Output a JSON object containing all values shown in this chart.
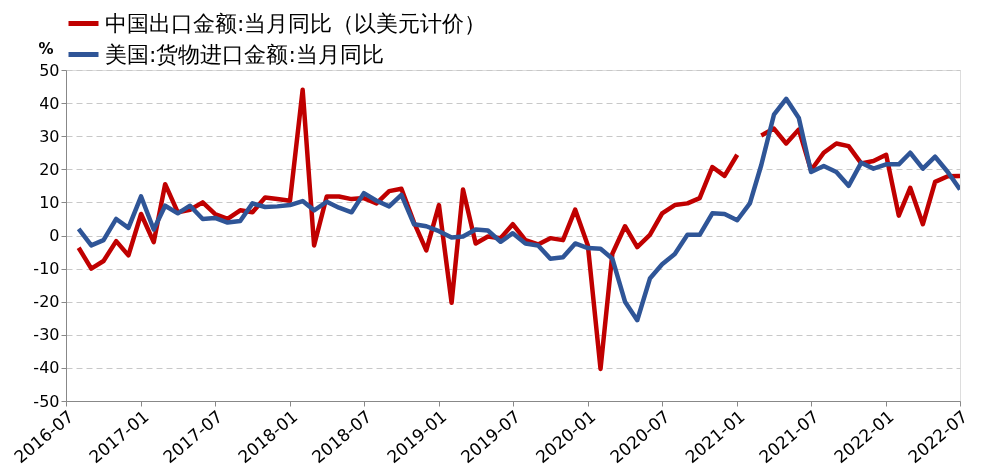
{
  "chart_data": {
    "type": "line",
    "ylabel": "%",
    "xlim": [
      "2016-07",
      "2022-07"
    ],
    "xticks": [
      "2016-07",
      "2017-01",
      "2017-07",
      "2018-01",
      "2018-07",
      "2019-01",
      "2019-07",
      "2020-01",
      "2020-07",
      "2021-01",
      "2021-07",
      "2022-01",
      "2022-07"
    ],
    "ylim": [
      -50,
      50
    ],
    "yticks": [
      -50,
      -40,
      -30,
      -20,
      -10,
      0,
      10,
      20,
      30,
      40,
      50
    ],
    "grid": "y",
    "legend": "top",
    "line_style": "solid",
    "marker": "none",
    "x": [
      "2016-08",
      "2016-09",
      "2016-10",
      "2016-11",
      "2016-12",
      "2017-01",
      "2017-02",
      "2017-03",
      "2017-04",
      "2017-05",
      "2017-06",
      "2017-07",
      "2017-08",
      "2017-09",
      "2017-10",
      "2017-11",
      "2017-12",
      "2018-01",
      "2018-02",
      "2018-03",
      "2018-04",
      "2018-05",
      "2018-06",
      "2018-07",
      "2018-08",
      "2018-09",
      "2018-10",
      "2018-11",
      "2018-12",
      "2019-01",
      "2019-02",
      "2019-03",
      "2019-04",
      "2019-05",
      "2019-06",
      "2019-07",
      "2019-08",
      "2019-09",
      "2019-10",
      "2019-11",
      "2019-12",
      "2020-01",
      "2020-02",
      "2020-03",
      "2020-04",
      "2020-05",
      "2020-06",
      "2020-07",
      "2020-08",
      "2020-09",
      "2020-10",
      "2020-11",
      "2020-12",
      "2021-01",
      "2021-02",
      "2021-03",
      "2021-04",
      "2021-05",
      "2021-06",
      "2021-07",
      "2021-08",
      "2021-09",
      "2021-10",
      "2021-11",
      "2021-12",
      "2022-01",
      "2022-02",
      "2022-03",
      "2022-04",
      "2022-05",
      "2022-06",
      "2022-07"
    ],
    "series": [
      {
        "name": "中国出口金额:当月同比（以美元计价）",
        "color": "#c00000",
        "values": [
          -3.7,
          -10,
          -7.7,
          -1.7,
          -6,
          6.5,
          -2,
          15.5,
          7,
          7.8,
          10,
          6.5,
          5,
          7.6,
          7,
          11.5,
          11,
          10.5,
          44,
          -3,
          11.8,
          11.8,
          11,
          11.3,
          9.7,
          13.4,
          14.1,
          3.9,
          -4.5,
          9.2,
          -20.3,
          13.9,
          -2.4,
          -0.3,
          -0.8,
          3.4,
          -1.4,
          -2.7,
          -0.8,
          -1.4,
          7.8,
          -3,
          -40.3,
          -5.5,
          2.8,
          -3.5,
          0.2,
          6.7,
          9.2,
          9.7,
          11.3,
          20.7,
          18,
          24.4,
          null,
          30.2,
          32.3,
          27.8,
          32,
          19.7,
          25,
          27.8,
          27,
          21.8,
          22.5,
          24.4,
          6,
          14.4,
          3.4,
          16.2,
          17.9,
          18
        ]
      },
      {
        "name": "美国:货物进口金额:当月同比",
        "color": "#2f5597",
        "values": [
          2,
          -3,
          -1.4,
          5,
          2.3,
          11.8,
          1.8,
          9,
          6.7,
          9,
          5,
          5.3,
          3.9,
          4.4,
          9.7,
          8.6,
          8.8,
          9.2,
          10.4,
          7.6,
          10.2,
          8.4,
          7,
          12.8,
          10.5,
          8.8,
          12.3,
          3.4,
          2.8,
          1.3,
          -0.6,
          -0.3,
          1.8,
          1.5,
          -1.9,
          0.7,
          -2.4,
          -3,
          -7,
          -6.6,
          -2.4,
          -3.8,
          -4,
          -7,
          -20,
          -25.6,
          -13,
          -8.7,
          -5.6,
          0.2,
          0.2,
          6.7,
          6.5,
          4.6,
          9.7,
          21.3,
          36.5,
          41.3,
          35.5,
          19.2,
          21,
          19.2,
          15,
          22,
          20.2,
          21.5,
          21.5,
          25,
          20.2,
          23.8,
          19.2,
          13.9
        ]
      }
    ]
  }
}
